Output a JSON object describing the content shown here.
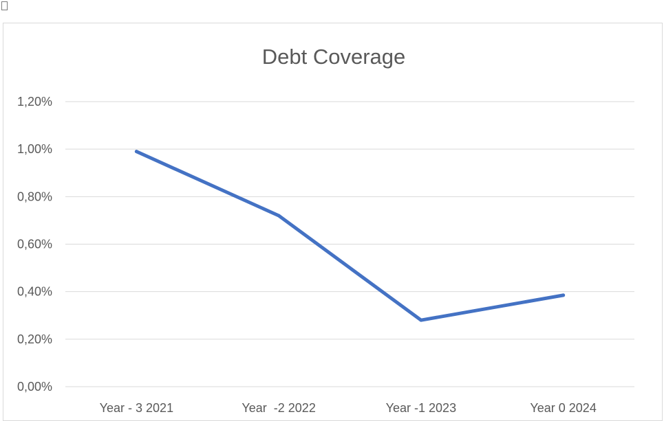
{
  "chart_data": {
    "type": "line",
    "title": "Debt Coverage",
    "categories": [
      "Year - 3 2021",
      "Year  -2 2022",
      "Year -1 2023",
      "Year 0 2024"
    ],
    "series": [
      {
        "values": [
          0.99,
          0.72,
          0.28,
          0.385
        ]
      }
    ],
    "ylim": [
      0,
      1.2
    ],
    "yticks": [
      "0,00%",
      "0,20%",
      "0,40%",
      "0,60%",
      "0,80%",
      "1,00%",
      "1,20%"
    ],
    "grid": true,
    "line_color": "#4472c4",
    "grid_color": "#d9d9d9",
    "text_color": "#595959"
  }
}
